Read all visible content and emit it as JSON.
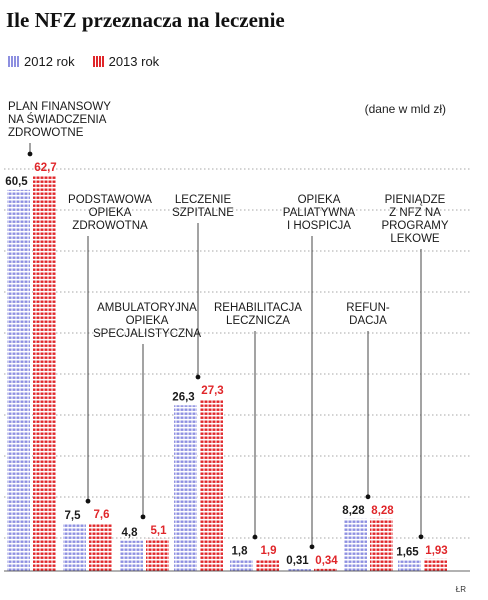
{
  "title": "Ile NFZ przeznacza na leczenie",
  "legend": [
    {
      "label": "2012 rok",
      "color": "#8d8fe0"
    },
    {
      "label": "2013 rok",
      "color": "#e0262a"
    }
  ],
  "subtitle": "(dane w mld zł)",
  "credit": "ŁR",
  "colors": {
    "y2012": "#8d8fe0",
    "y2013": "#e0262a",
    "label2012": "#1a1a1a",
    "label2013": "#e0262a"
  },
  "chart_data": {
    "type": "bar",
    "title": "Ile NFZ przeznacza na leczenie",
    "unit": "(dane w mld zł)",
    "categories": [
      [
        "PLAN FINANSOWY",
        "NA ŚWIADCZENIA",
        "ZDROWOTNE"
      ],
      [
        "PODSTAWOWA",
        "OPIEKA",
        "ZDROWOTNA"
      ],
      [
        "AMBULATORYJNA",
        "OPIEKA",
        "SPECJALISTYCZNA"
      ],
      [
        "LECZENIE",
        "SZPITALNE"
      ],
      [
        "REHABILITACJA",
        "LECZNICZA"
      ],
      [
        "OPIEKA",
        "PALIATYWNA",
        "I HOSPICJA"
      ],
      [
        "REFUN-",
        "DACJA"
      ],
      [
        "PIENIĄDZE",
        "Z NFZ NA",
        "PROGRAMY",
        "LEKOWE"
      ]
    ],
    "series": [
      {
        "name": "2012 rok",
        "values": [
          60.5,
          7.5,
          4.8,
          26.3,
          1.8,
          0.31,
          8.28,
          1.65
        ],
        "labels": [
          "60,5",
          "7,5",
          "4,8",
          "26,3",
          "1,8",
          "0,31",
          "8,28",
          "1,65"
        ]
      },
      {
        "name": "2013 rok",
        "values": [
          62.7,
          7.6,
          5.1,
          27.3,
          1.9,
          0.34,
          8.28,
          1.93
        ],
        "labels": [
          "62,7",
          "7,6",
          "5,1",
          "27,3",
          "1,9",
          "0,34",
          "8,28",
          "1,93"
        ]
      }
    ],
    "ylim": [
      0,
      65
    ],
    "grid": true,
    "legend_position": "top-left"
  }
}
